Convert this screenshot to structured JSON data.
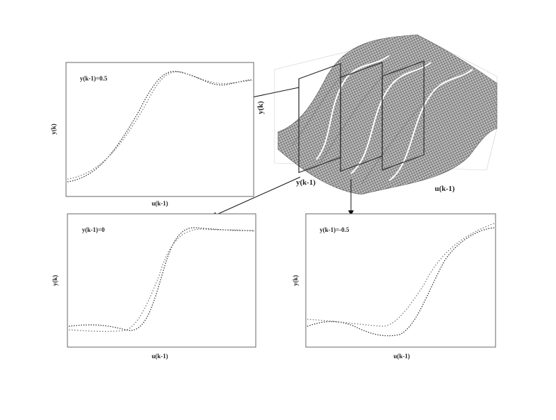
{
  "surface": {
    "y_label": "y(k)",
    "x_label": "y(k-1)",
    "z_label": "u(k-1)"
  },
  "panels": [
    {
      "title": "y(k-1)=0.5",
      "y_label": "y(k)",
      "x_label": "u(k-1)"
    },
    {
      "title": "y(k-1)=0",
      "y_label": "y(k)",
      "x_label": "u(k-1)"
    },
    {
      "title": "y(k-1)=-0.5",
      "y_label": "y(k)",
      "x_label": "u(k-1)"
    }
  ]
}
